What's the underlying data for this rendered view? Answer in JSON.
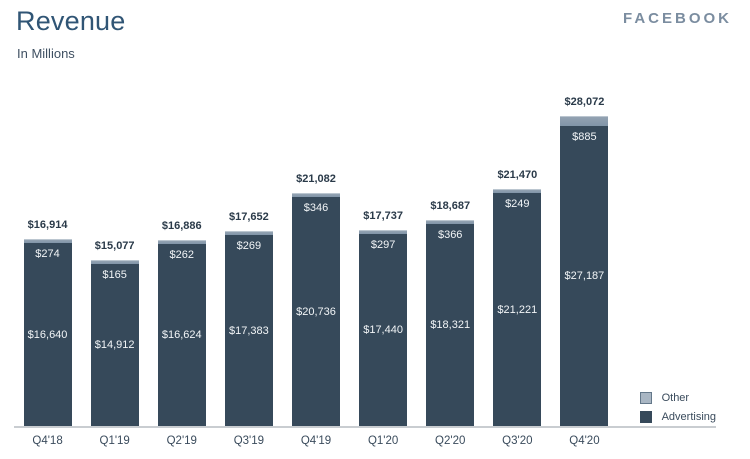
{
  "header": {
    "title": "Revenue",
    "subtitle": "In Millions",
    "logo": "FACEBOOK"
  },
  "legend": {
    "position": "bottom-right",
    "items": [
      {
        "label": "Other",
        "color": "#a9b6c3",
        "border": "#64788a"
      },
      {
        "label": "Advertising",
        "color": "#36495a",
        "border": "#36495a"
      }
    ]
  },
  "chart_data": {
    "type": "bar",
    "stacked": true,
    "title": "Revenue",
    "subtitle": "In Millions",
    "xlabel": "",
    "ylabel": "",
    "grid": false,
    "y_axis_visible": false,
    "categories": [
      "Q4'18",
      "Q1'19",
      "Q2'19",
      "Q3'19",
      "Q4'19",
      "Q1'20",
      "Q2'20",
      "Q3'20",
      "Q4'20"
    ],
    "series": [
      {
        "name": "Advertising",
        "color": "#36495a",
        "values": [
          16640,
          14912,
          16624,
          17383,
          20736,
          17440,
          18321,
          21221,
          27187
        ],
        "labels": [
          "$16,640",
          "$14,912",
          "$16,624",
          "$17,383",
          "$20,736",
          "$17,440",
          "$18,321",
          "$21,221",
          "$27,187"
        ]
      },
      {
        "name": "Other",
        "color": "#8195a8",
        "values": [
          274,
          165,
          262,
          269,
          346,
          297,
          366,
          249,
          885
        ],
        "labels": [
          "$274",
          "$165",
          "$262",
          "$269",
          "$346",
          "$297",
          "$366",
          "$249",
          "$885"
        ]
      }
    ],
    "totals": [
      16914,
      15077,
      16886,
      17652,
      21082,
      17737,
      18687,
      21470,
      28072
    ],
    "total_labels": [
      "$16,914",
      "$15,077",
      "$16,886",
      "$17,652",
      "$21,082",
      "$17,737",
      "$18,687",
      "$21,470",
      "$28,072"
    ]
  }
}
